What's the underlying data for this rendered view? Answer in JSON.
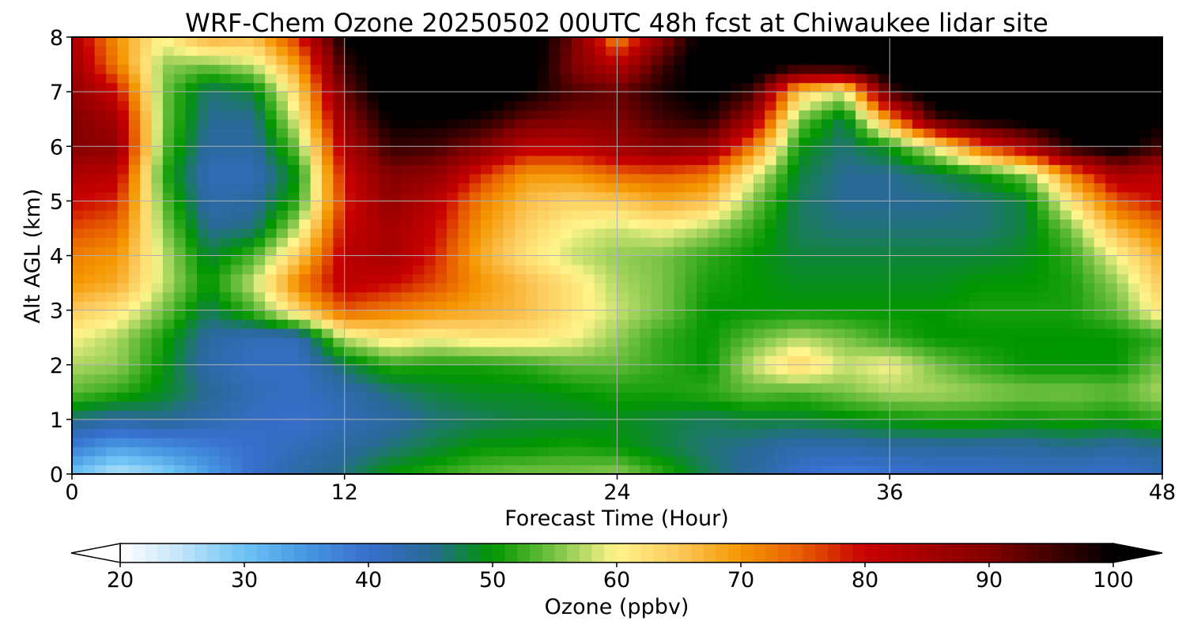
{
  "chart_data": {
    "type": "heatmap",
    "title": "WRF-Chem Ozone  20250502 00UTC 48h fcst at Chiwaukee lidar site",
    "xlabel": "Forecast Time (Hour)",
    "ylabel": "Alt AGL (km)",
    "xlim": [
      0,
      48
    ],
    "ylim": [
      0,
      8
    ],
    "xticks": [
      0,
      12,
      24,
      36,
      48
    ],
    "yticks": [
      0,
      1,
      2,
      3,
      4,
      5,
      6,
      7,
      8
    ],
    "grid": true,
    "x_hours": [
      0,
      2,
      4,
      6,
      8,
      10,
      12,
      14,
      16,
      18,
      20,
      22,
      24,
      26,
      28,
      30,
      32,
      34,
      36,
      38,
      40,
      42,
      44,
      46,
      48
    ],
    "y_km": [
      0,
      0.5,
      1,
      1.5,
      2,
      2.5,
      3,
      3.5,
      4,
      4.5,
      5,
      5.5,
      6,
      6.5,
      7,
      7.5,
      8
    ],
    "z_ppbv": [
      [
        30,
        25,
        28,
        34,
        40,
        44,
        46,
        50,
        52,
        54,
        55,
        55,
        56,
        52,
        47,
        44,
        40,
        38,
        39,
        40,
        40,
        41,
        41,
        40,
        42
      ],
      [
        38,
        34,
        36,
        38,
        40,
        42,
        44,
        46,
        48,
        50,
        50,
        51,
        50,
        48,
        46,
        45,
        43,
        43,
        44,
        44,
        44,
        44,
        45,
        44,
        45
      ],
      [
        46,
        44,
        45,
        43,
        41,
        40,
        42,
        44,
        46,
        47,
        48,
        48,
        49,
        48,
        47,
        48,
        48,
        49,
        50,
        51,
        51,
        50,
        51,
        50,
        52
      ],
      [
        54,
        52,
        49,
        45,
        42,
        41,
        43,
        46,
        48,
        49,
        49,
        50,
        51,
        51,
        52,
        54,
        53,
        55,
        57,
        57,
        56,
        55,
        55,
        54,
        57
      ],
      [
        57,
        56,
        50,
        43,
        41,
        41,
        47,
        52,
        51,
        51,
        52,
        54,
        54,
        52,
        50,
        58,
        64,
        58,
        60,
        55,
        52,
        50,
        50,
        50,
        55
      ],
      [
        60,
        57,
        51,
        44,
        42,
        42,
        58,
        62,
        60,
        62,
        62,
        60,
        56,
        52,
        50,
        54,
        57,
        55,
        52,
        50,
        50,
        50,
        50,
        50,
        52
      ],
      [
        65,
        62,
        55,
        47,
        53,
        64,
        75,
        72,
        70,
        68,
        66,
        62,
        58,
        55,
        50,
        50,
        50,
        50,
        50,
        50,
        51,
        51,
        51,
        54,
        62
      ],
      [
        70,
        68,
        58,
        50,
        58,
        72,
        82,
        80,
        76,
        70,
        66,
        62,
        57,
        55,
        51,
        50,
        49,
        49,
        49,
        49,
        50,
        50,
        51,
        56,
        65
      ],
      [
        72,
        70,
        58,
        48,
        53,
        65,
        82,
        85,
        78,
        68,
        62,
        58,
        56,
        55,
        52,
        50,
        48,
        48,
        48,
        48,
        48,
        49,
        52,
        60,
        68
      ],
      [
        76,
        74,
        56,
        45,
        46,
        58,
        80,
        85,
        80,
        70,
        64,
        60,
        58,
        60,
        57,
        52,
        47,
        46,
        46,
        46,
        46,
        48,
        55,
        67,
        73
      ],
      [
        80,
        78,
        54,
        43,
        44,
        52,
        78,
        88,
        82,
        72,
        66,
        64,
        65,
        68,
        66,
        55,
        47,
        45,
        45,
        45,
        46,
        48,
        62,
        75,
        80
      ],
      [
        84,
        82,
        52,
        42,
        42,
        50,
        80,
        90,
        88,
        78,
        70,
        70,
        74,
        75,
        73,
        60,
        48,
        45,
        45,
        47,
        50,
        55,
        72,
        85,
        82
      ],
      [
        90,
        88,
        54,
        44,
        44,
        55,
        84,
        96,
        95,
        90,
        82,
        82,
        86,
        90,
        88,
        72,
        50,
        46,
        50,
        60,
        75,
        85,
        98,
        102,
        95
      ],
      [
        90,
        85,
        55,
        45,
        45,
        60,
        88,
        100,
        100,
        98,
        92,
        90,
        90,
        95,
        98,
        85,
        55,
        47,
        70,
        95,
        100,
        102,
        104,
        104,
        100
      ],
      [
        88,
        80,
        55,
        46,
        48,
        64,
        92,
        104,
        104,
        104,
        100,
        94,
        92,
        98,
        102,
        95,
        65,
        58,
        95,
        104,
        104,
        104,
        104,
        104,
        104
      ],
      [
        86,
        72,
        56,
        55,
        58,
        70,
        96,
        104,
        104,
        104,
        104,
        90,
        82,
        95,
        104,
        104,
        100,
        102,
        104,
        104,
        104,
        104,
        104,
        104,
        104
      ],
      [
        84,
        70,
        60,
        68,
        66,
        78,
        100,
        104,
        104,
        104,
        104,
        92,
        70,
        88,
        104,
        104,
        104,
        104,
        104,
        104,
        104,
        104,
        104,
        104,
        104
      ]
    ],
    "colorbar": {
      "label": "Ozone  (ppbv)",
      "min": 20,
      "max": 100,
      "ticks": [
        20,
        30,
        40,
        50,
        60,
        70,
        80,
        90,
        100
      ],
      "extend": "both"
    }
  }
}
